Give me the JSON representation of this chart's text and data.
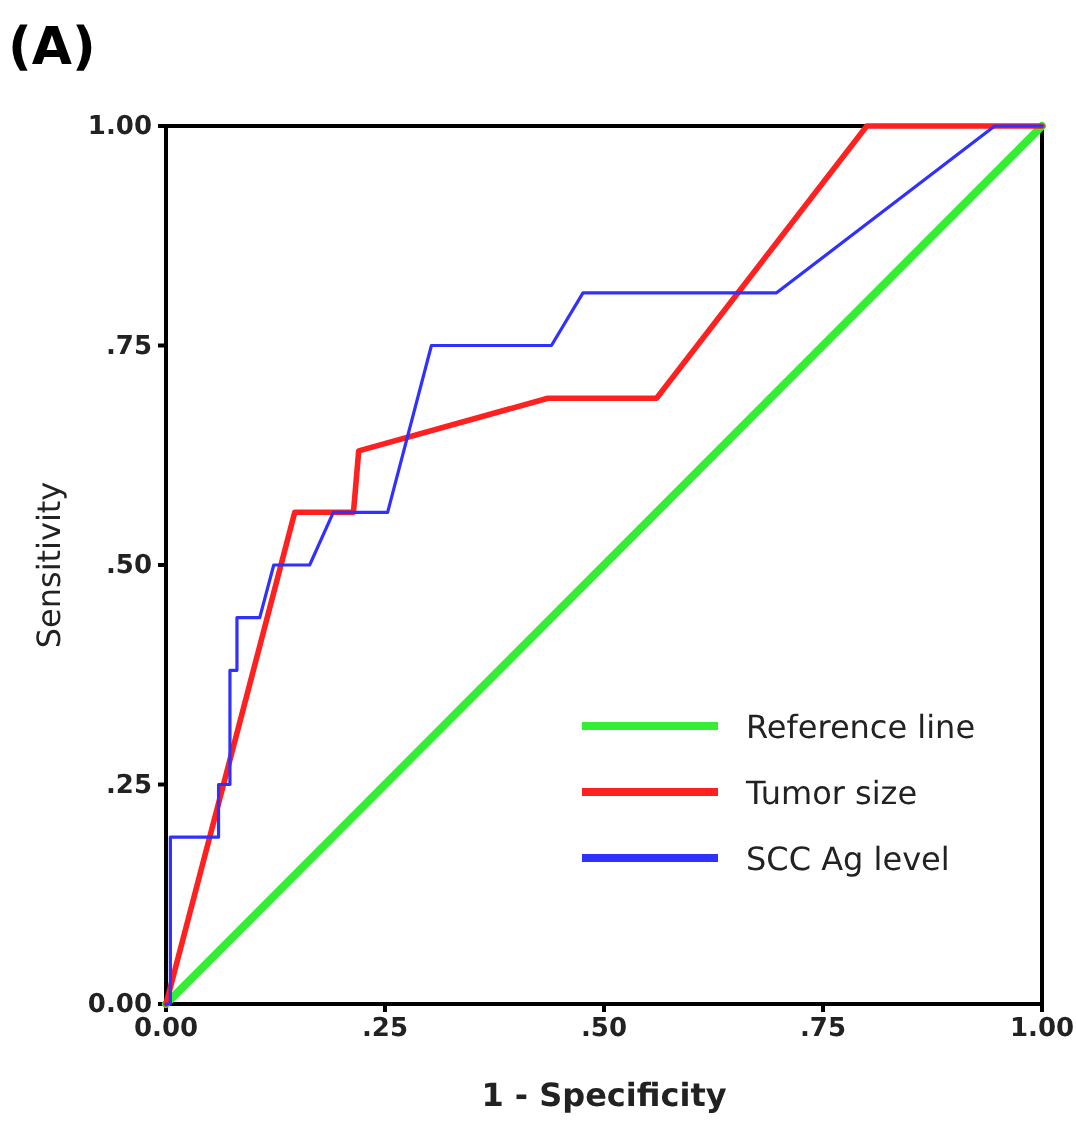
{
  "chart_data": {
    "type": "line",
    "title": "(A)",
    "xlabel": "1 - Specificity",
    "ylabel": "Sensitivity",
    "xlim": [
      0,
      1
    ],
    "ylim": [
      0,
      1
    ],
    "xticks": [
      {
        "value": 0,
        "label": "0.00"
      },
      {
        "value": 0.25,
        "label": ".25"
      },
      {
        "value": 0.5,
        "label": ".50"
      },
      {
        "value": 0.75,
        "label": ".75"
      },
      {
        "value": 1,
        "label": "1.00"
      }
    ],
    "yticks": [
      {
        "value": 0,
        "label": "0.00"
      },
      {
        "value": 0.25,
        "label": ".25"
      },
      {
        "value": 0.5,
        "label": ".50"
      },
      {
        "value": 0.75,
        "label": ".75"
      },
      {
        "value": 1,
        "label": "1.00"
      }
    ],
    "grid": false,
    "legend": "bottom right",
    "marker": "none",
    "line_style": "solid",
    "series": [
      {
        "name": "Reference line",
        "color": "#33ee33",
        "x": [
          0,
          1
        ],
        "values": [
          0,
          1
        ]
      },
      {
        "name": "Tumor size",
        "color": "#ff2020",
        "x": [
          0,
          0.147,
          0.214,
          0.22,
          0.436,
          0.56,
          0.8,
          1
        ],
        "values": [
          0,
          0.56,
          0.56,
          0.63,
          0.69,
          0.69,
          1,
          1
        ]
      },
      {
        "name": "SCC Ag level",
        "color": "#3030ff",
        "x": [
          0,
          0.005,
          0.005,
          0.06,
          0.06,
          0.073,
          0.073,
          0.081,
          0.081,
          0.107,
          0.123,
          0.164,
          0.191,
          0.253,
          0.303,
          0.44,
          0.476,
          0.697,
          0.946,
          1
        ],
        "values": [
          0,
          0,
          0.19,
          0.19,
          0.25,
          0.25,
          0.38,
          0.38,
          0.44,
          0.44,
          0.5,
          0.5,
          0.56,
          0.56,
          0.75,
          0.75,
          0.81,
          0.81,
          1,
          1
        ]
      }
    ]
  }
}
